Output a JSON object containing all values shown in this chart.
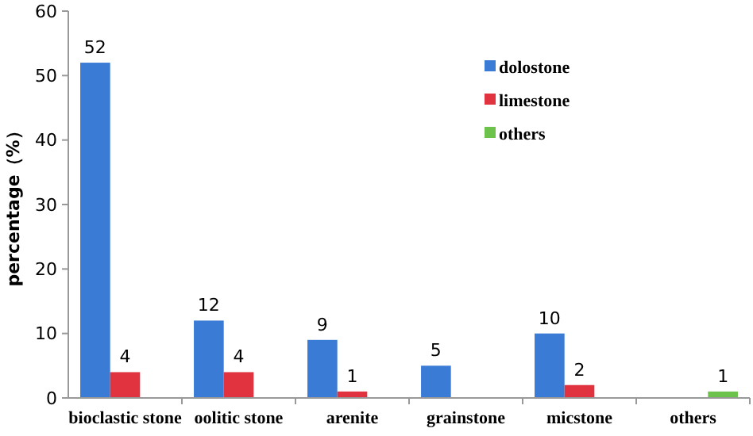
{
  "chart_data": {
    "type": "bar",
    "ylabel": "percentage（%）",
    "categories": [
      "bioclastic stone",
      "oolitic stone",
      "arenite",
      "grainstone",
      "micstone",
      "others"
    ],
    "series": [
      {
        "name": "dolostone",
        "color": "#3a7bd5",
        "values": [
          52,
          12,
          9,
          5,
          10,
          null
        ]
      },
      {
        "name": "limestone",
        "color": "#e0323f",
        "values": [
          4,
          4,
          1,
          null,
          2,
          null
        ]
      },
      {
        "name": "others",
        "color": "#6cc24a",
        "values": [
          null,
          null,
          null,
          null,
          null,
          1
        ]
      }
    ],
    "ylim": [
      0,
      60
    ],
    "yticks": [
      0,
      10,
      20,
      30,
      40,
      50,
      60
    ],
    "data_labels": true,
    "legend": "top right",
    "grid": false
  }
}
